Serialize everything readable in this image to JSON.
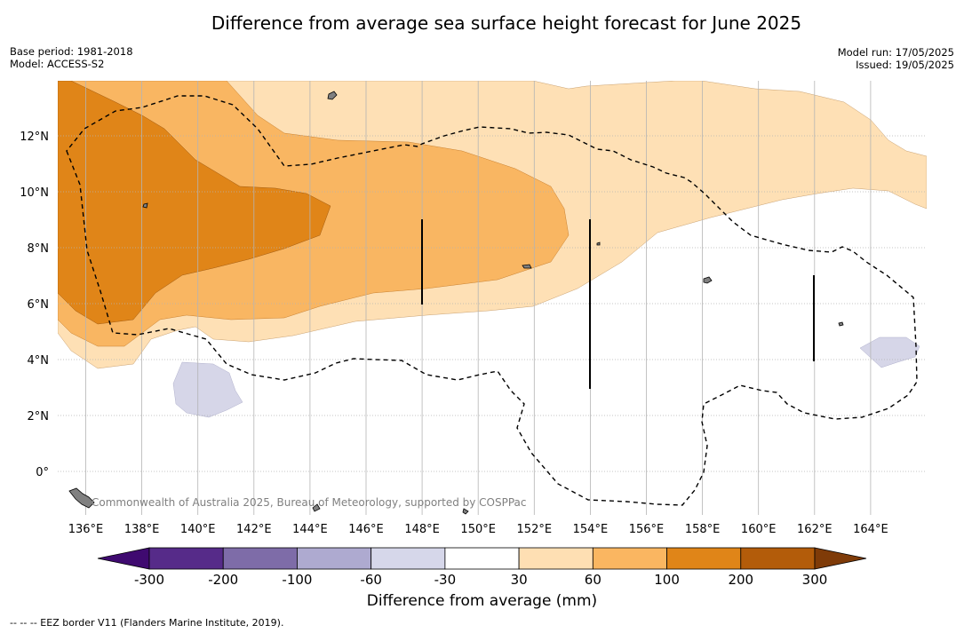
{
  "title": "Difference from average sea surface height forecast for June 2025",
  "meta_left": {
    "base_period": "Base period: 1981-2018",
    "model": "Model: ACCESS-S2"
  },
  "meta_right": {
    "model_run": "Model run: 17/05/2025",
    "issued": "Issued: 19/05/2025"
  },
  "map": {
    "lon_ticks": [
      "136°E",
      "138°E",
      "140°E",
      "142°E",
      "144°E",
      "146°E",
      "148°E",
      "150°E",
      "152°E",
      "154°E",
      "156°E",
      "158°E",
      "160°E",
      "162°E",
      "164°E"
    ],
    "lat_ticks": [
      "12°N",
      "10°N",
      "8°N",
      "6°N",
      "4°N",
      "2°N",
      "0°"
    ],
    "credit": "Commonwealth of Australia 2025, Bureau of Meteorology, supported by COSPPac",
    "grid": true,
    "legend_placement": "bottom"
  },
  "colorbar": {
    "title": "Difference from average (mm)",
    "tick_labels": [
      "-300",
      "-200",
      "-100",
      "-60",
      "-30",
      "30",
      "60",
      "100",
      "200",
      "300"
    ],
    "colors": [
      "#3f0a70",
      "#562b89",
      "#7e6ca8",
      "#aeaad0",
      "#d6d7ea",
      "#ffffff",
      "#fedfb3",
      "#fab661",
      "#e08518",
      "#b35c0a",
      "#7f3b08"
    ]
  },
  "colors": {
    "light_orange": "#fee0b5",
    "mid_orange": "#f9b662",
    "dark_orange": "#e08518",
    "light_purple": "#d6d6e8",
    "eez_border": "#000000",
    "grid": "#aaaaaa"
  },
  "footer": "--  --  -- EEZ border V11 (Flanders Marine Institute, 2019)."
}
